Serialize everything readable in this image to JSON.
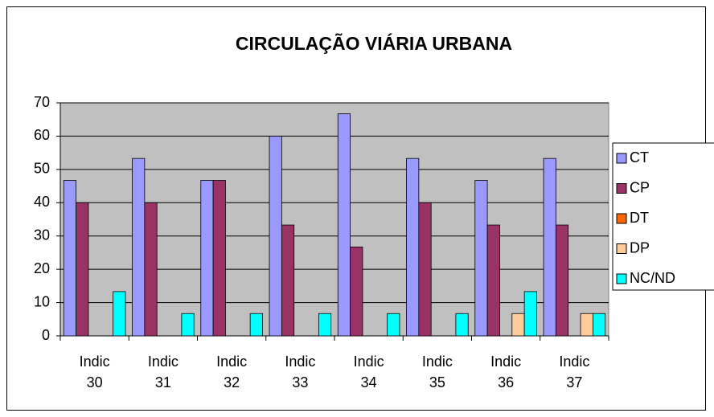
{
  "chart_data": {
    "type": "bar",
    "title": "CIRCULAÇÃO VIÁRIA URBANA",
    "categories": [
      "Indic 30",
      "Indic 31",
      "Indic 32",
      "Indic 33",
      "Indic 34",
      "Indic 35",
      "Indic 36",
      "Indic 37"
    ],
    "series": [
      {
        "name": "CT",
        "color": "#9999ff",
        "values": [
          46.7,
          53.3,
          46.7,
          60,
          66.7,
          53.3,
          46.7,
          53.3
        ]
      },
      {
        "name": "CP",
        "color": "#993366",
        "values": [
          40,
          40,
          46.7,
          33.3,
          26.7,
          40,
          33.3,
          33.3
        ]
      },
      {
        "name": "DT",
        "color": "#ff6600",
        "values": [
          0,
          0,
          0,
          0,
          0,
          0,
          0,
          0
        ]
      },
      {
        "name": "DP",
        "color": "#ffcc99",
        "values": [
          0,
          0,
          0,
          0,
          0,
          0,
          6.7,
          6.7
        ]
      },
      {
        "name": "NC/ND",
        "color": "#00ffff",
        "values": [
          13.3,
          6.7,
          6.7,
          6.7,
          6.7,
          6.7,
          13.3,
          6.7
        ]
      }
    ],
    "ylim": [
      0,
      70
    ],
    "yticks": [
      0,
      10,
      20,
      30,
      40,
      50,
      60,
      70
    ],
    "grid": true,
    "legend": "right"
  }
}
